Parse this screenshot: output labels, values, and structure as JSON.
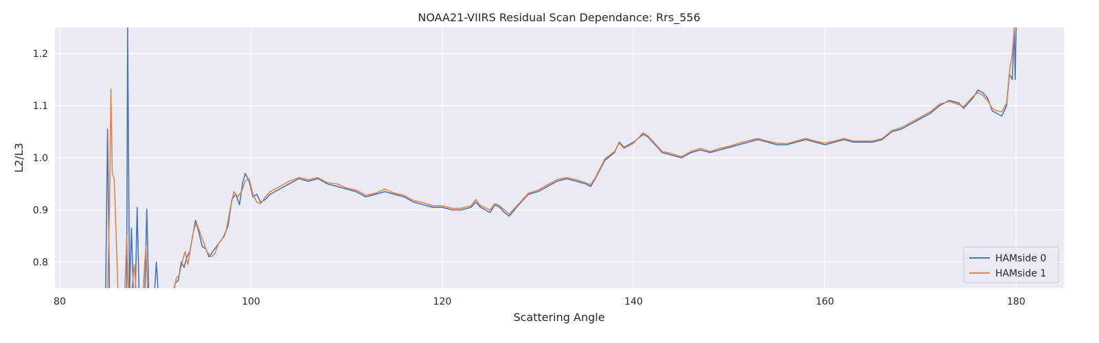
{
  "chart_data": {
    "type": "line",
    "title": "NOAA21-VIIRS Residual Scan Dependance: Rrs_556",
    "xlabel": "Scattering Angle",
    "ylabel": "L2/L3",
    "xlim": [
      79.5,
      185
    ],
    "ylim": [
      0.75,
      1.25
    ],
    "xticks": [
      80,
      100,
      120,
      140,
      160,
      180
    ],
    "yticks": [
      0.8,
      0.9,
      1.0,
      1.1,
      1.2
    ],
    "grid": true,
    "legend_position": "bottom-right",
    "background": "#eaeaf2",
    "series": [
      {
        "name": "HAMside 0",
        "color": "#4c72b0",
        "x": [
          84.8,
          85.0,
          85.2,
          85.4,
          85.7,
          86.0,
          86.4,
          86.8,
          87.0,
          87.1,
          87.3,
          87.5,
          87.7,
          87.9,
          88.1,
          88.3,
          88.6,
          88.9,
          89.1,
          89.3,
          89.6,
          89.9,
          90.1,
          90.3,
          90.7,
          91.0,
          91.4,
          91.8,
          92.1,
          92.4,
          92.7,
          93.0,
          93.3,
          93.6,
          93.9,
          94.2,
          94.5,
          94.9,
          95.3,
          95.6,
          96.0,
          96.4,
          96.8,
          97.2,
          97.6,
          98.0,
          98.4,
          98.8,
          99.1,
          99.4,
          99.8,
          100.2,
          100.6,
          101.0,
          101.5,
          102.0,
          103.0,
          104.0,
          105.0,
          106.0,
          107.0,
          108.0,
          109.0,
          110.0,
          111.0,
          112.0,
          113.0,
          114.0,
          115.0,
          116.0,
          117.0,
          118.0,
          119.0,
          120.0,
          121.0,
          122.0,
          123.0,
          123.5,
          124.0,
          125.0,
          125.5,
          126.0,
          126.5,
          127.0,
          128.0,
          129.0,
          130.0,
          131.0,
          132.0,
          133.0,
          134.0,
          135.0,
          135.5,
          136.0,
          137.0,
          138.0,
          138.5,
          139.0,
          140.0,
          141.0,
          141.5,
          142.0,
          143.0,
          144.0,
          145.0,
          146.0,
          147.0,
          148.0,
          149.0,
          150.0,
          151.0,
          152.0,
          153.0,
          154.0,
          155.0,
          156.0,
          157.0,
          158.0,
          159.0,
          160.0,
          161.0,
          162.0,
          163.0,
          164.0,
          165.0,
          166.0,
          167.0,
          168.0,
          169.0,
          170.0,
          171.0,
          172.0,
          173.0,
          174.0,
          174.5,
          175.0,
          175.5,
          176.0,
          176.5,
          177.0,
          177.5,
          178.0,
          178.5,
          179.0,
          179.3,
          179.6,
          179.8,
          179.9,
          180.0
        ],
        "values": [
          0.74,
          1.055,
          0.74,
          0.74,
          0.74,
          0.74,
          0.74,
          0.74,
          0.74,
          1.25,
          0.74,
          0.865,
          0.74,
          0.74,
          0.905,
          0.74,
          0.74,
          0.74,
          0.902,
          0.74,
          0.74,
          0.74,
          0.8,
          0.74,
          0.74,
          0.74,
          0.74,
          0.74,
          0.76,
          0.765,
          0.8,
          0.79,
          0.81,
          0.82,
          0.85,
          0.88,
          0.86,
          0.83,
          0.825,
          0.81,
          0.82,
          0.83,
          0.84,
          0.85,
          0.87,
          0.92,
          0.93,
          0.91,
          0.95,
          0.97,
          0.955,
          0.925,
          0.93,
          0.915,
          0.92,
          0.93,
          0.94,
          0.95,
          0.96,
          0.955,
          0.96,
          0.95,
          0.945,
          0.94,
          0.935,
          0.925,
          0.93,
          0.935,
          0.93,
          0.925,
          0.915,
          0.91,
          0.905,
          0.905,
          0.9,
          0.9,
          0.905,
          0.915,
          0.905,
          0.895,
          0.91,
          0.905,
          0.895,
          0.888,
          0.91,
          0.93,
          0.935,
          0.945,
          0.955,
          0.96,
          0.955,
          0.95,
          0.945,
          0.96,
          0.995,
          1.01,
          1.03,
          1.02,
          1.03,
          1.045,
          1.04,
          1.03,
          1.01,
          1.005,
          1.0,
          1.01,
          1.015,
          1.01,
          1.015,
          1.02,
          1.025,
          1.03,
          1.035,
          1.03,
          1.025,
          1.025,
          1.03,
          1.035,
          1.03,
          1.025,
          1.03,
          1.035,
          1.03,
          1.03,
          1.03,
          1.035,
          1.05,
          1.055,
          1.065,
          1.075,
          1.085,
          1.1,
          1.11,
          1.105,
          1.095,
          1.105,
          1.115,
          1.13,
          1.125,
          1.115,
          1.09,
          1.085,
          1.08,
          1.1,
          1.16,
          1.15,
          1.25,
          1.15,
          1.25
        ]
      },
      {
        "name": "HAMside 1",
        "color": "#dd8452",
        "x": [
          85.0,
          85.2,
          85.35,
          85.5,
          85.7,
          85.9,
          86.1,
          86.4,
          86.8,
          87.0,
          87.2,
          87.5,
          87.8,
          88.0,
          88.3,
          88.7,
          89.0,
          89.2,
          89.4,
          89.8,
          90.2,
          90.6,
          91.0,
          91.5,
          91.9,
          92.2,
          92.5,
          92.8,
          93.1,
          93.4,
          93.7,
          94.0,
          94.3,
          94.6,
          95.0,
          95.4,
          95.8,
          96.2,
          96.6,
          97.0,
          97.4,
          97.8,
          98.2,
          98.6,
          99.0,
          99.4,
          99.8,
          100.2,
          100.6,
          101.0,
          101.5,
          102.0,
          103.0,
          104.0,
          105.0,
          106.0,
          107.0,
          108.0,
          109.0,
          110.0,
          111.0,
          112.0,
          113.0,
          114.0,
          115.0,
          116.0,
          117.0,
          118.0,
          119.0,
          120.0,
          121.0,
          122.0,
          123.0,
          123.5,
          124.0,
          125.0,
          125.5,
          126.0,
          126.5,
          127.0,
          128.0,
          129.0,
          130.0,
          131.0,
          132.0,
          133.0,
          134.0,
          135.0,
          135.5,
          136.0,
          137.0,
          138.0,
          138.5,
          139.0,
          140.0,
          141.0,
          141.5,
          142.0,
          143.0,
          144.0,
          145.0,
          146.0,
          147.0,
          148.0,
          149.0,
          150.0,
          151.0,
          152.0,
          153.0,
          154.0,
          155.0,
          156.0,
          157.0,
          158.0,
          159.0,
          160.0,
          161.0,
          162.0,
          163.0,
          164.0,
          165.0,
          166.0,
          167.0,
          168.0,
          169.0,
          170.0,
          171.0,
          172.0,
          173.0,
          174.0,
          174.5,
          175.0,
          175.5,
          176.0,
          176.5,
          177.0,
          177.5,
          178.0,
          178.5,
          179.0,
          179.3,
          179.6,
          179.8,
          180.0
        ],
        "values": [
          0.74,
          0.9,
          1.132,
          0.97,
          0.96,
          0.85,
          0.74,
          0.74,
          0.74,
          0.85,
          0.74,
          0.74,
          0.795,
          0.74,
          0.74,
          0.74,
          0.83,
          0.74,
          0.74,
          0.74,
          0.74,
          0.74,
          0.74,
          0.74,
          0.74,
          0.77,
          0.775,
          0.8,
          0.82,
          0.795,
          0.83,
          0.86,
          0.875,
          0.86,
          0.84,
          0.82,
          0.81,
          0.815,
          0.835,
          0.845,
          0.86,
          0.9,
          0.935,
          0.925,
          0.935,
          0.955,
          0.96,
          0.93,
          0.915,
          0.912,
          0.925,
          0.935,
          0.945,
          0.955,
          0.962,
          0.958,
          0.962,
          0.952,
          0.95,
          0.942,
          0.938,
          0.928,
          0.932,
          0.94,
          0.932,
          0.928,
          0.918,
          0.914,
          0.908,
          0.908,
          0.903,
          0.903,
          0.908,
          0.92,
          0.908,
          0.9,
          0.912,
          0.908,
          0.9,
          0.892,
          0.912,
          0.932,
          0.938,
          0.948,
          0.958,
          0.962,
          0.958,
          0.952,
          0.948,
          0.962,
          0.998,
          1.012,
          1.028,
          1.018,
          1.028,
          1.048,
          1.042,
          1.032,
          1.012,
          1.008,
          1.002,
          1.012,
          1.018,
          1.012,
          1.018,
          1.022,
          1.028,
          1.033,
          1.037,
          1.032,
          1.028,
          1.027,
          1.032,
          1.037,
          1.032,
          1.028,
          1.032,
          1.037,
          1.032,
          1.032,
          1.032,
          1.037,
          1.052,
          1.058,
          1.068,
          1.078,
          1.088,
          1.103,
          1.108,
          1.102,
          1.098,
          1.108,
          1.118,
          1.125,
          1.12,
          1.11,
          1.095,
          1.09,
          1.088,
          1.105,
          1.165,
          1.2,
          1.25,
          1.25
        ]
      }
    ]
  }
}
